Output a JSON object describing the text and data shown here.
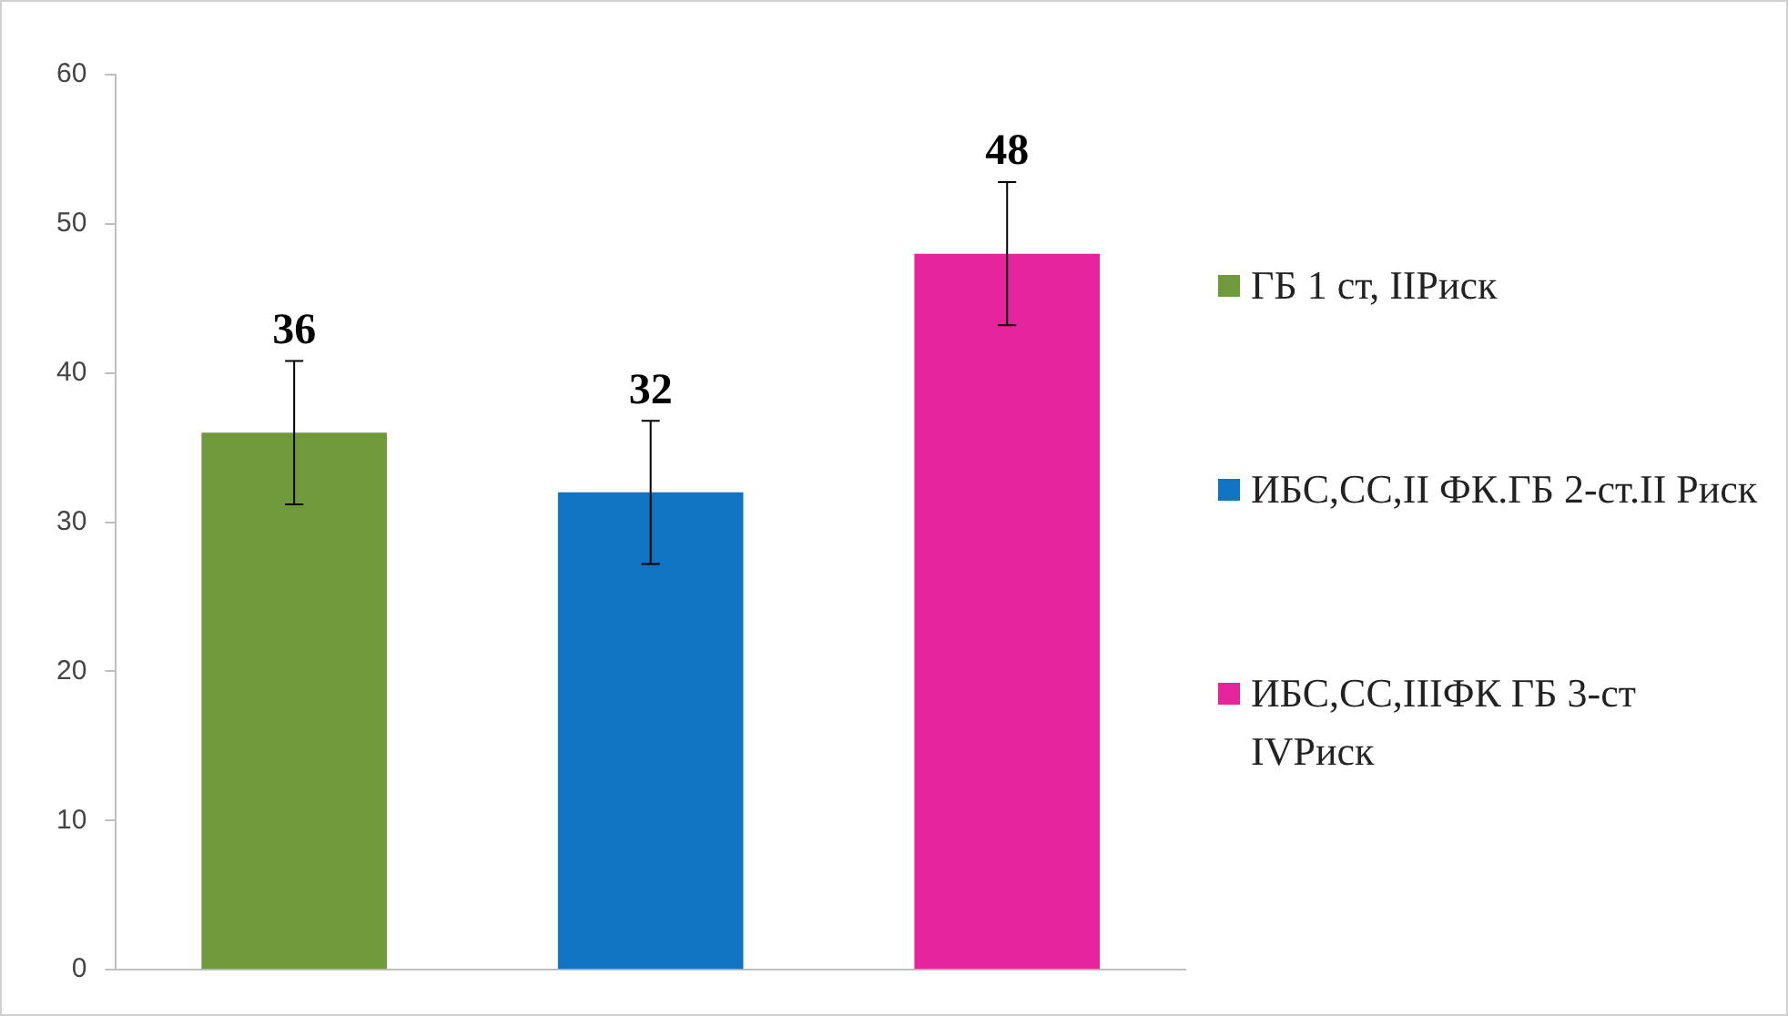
{
  "chart_data": {
    "type": "bar",
    "categories": [
      null
    ],
    "series": [
      {
        "name": "ГБ 1 ст, IIРиск",
        "color": "#6f9a3c",
        "values": [
          36
        ],
        "errors": [
          4.8
        ]
      },
      {
        "name": "ИБС,СС,II ФК.ГБ 2-ст.II Риск",
        "color": "#1173c4",
        "values": [
          32
        ],
        "errors": [
          4.8
        ]
      },
      {
        "name": "ИБС,СС,IIIФК ГБ 3-ст IVРиск",
        "color": "#e6249b",
        "values": [
          48
        ],
        "errors": [
          4.8
        ]
      }
    ],
    "ylim": [
      0,
      60
    ],
    "yticks": [
      0,
      10,
      20,
      30,
      40,
      50,
      60
    ],
    "grid": false,
    "legend": "right",
    "data_labels": true
  }
}
